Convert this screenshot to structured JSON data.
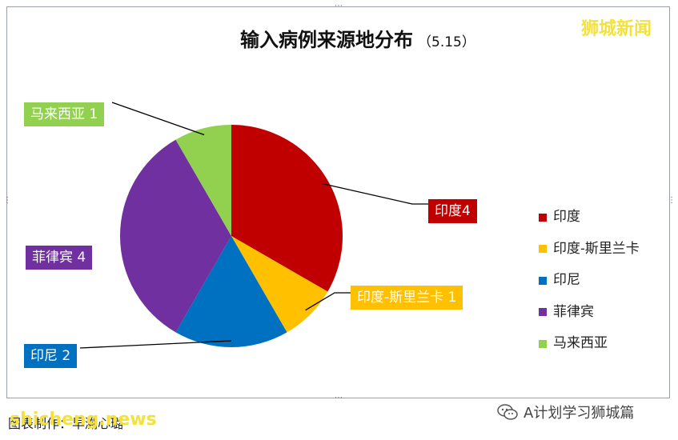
{
  "chart_data": {
    "type": "pie",
    "title": "输入病例来源地分布",
    "subtitle": "（5.15）",
    "categories": [
      "印度",
      "印度-斯里兰卡",
      "印尼",
      "菲律宾",
      "马来西亚"
    ],
    "values": [
      4,
      1,
      2,
      4,
      1
    ],
    "colors": [
      "#c00000",
      "#ffc000",
      "#0070c0",
      "#7030a0",
      "#92d050"
    ],
    "data_labels": [
      "印度4",
      "印度-斯里兰卡 1",
      "印尼 2",
      "菲律宾 4",
      "马来西亚 1"
    ],
    "legend": [
      "印度",
      "印度-斯里兰卡",
      "印尼",
      "菲律宾",
      "马来西亚"
    ],
    "legend_position": "right"
  },
  "watermark": "狮城新闻",
  "caption": "图表制作：早溯心璐",
  "sig_mark": "shicheng.news",
  "wechat_label": "A计划学习狮城篇"
}
